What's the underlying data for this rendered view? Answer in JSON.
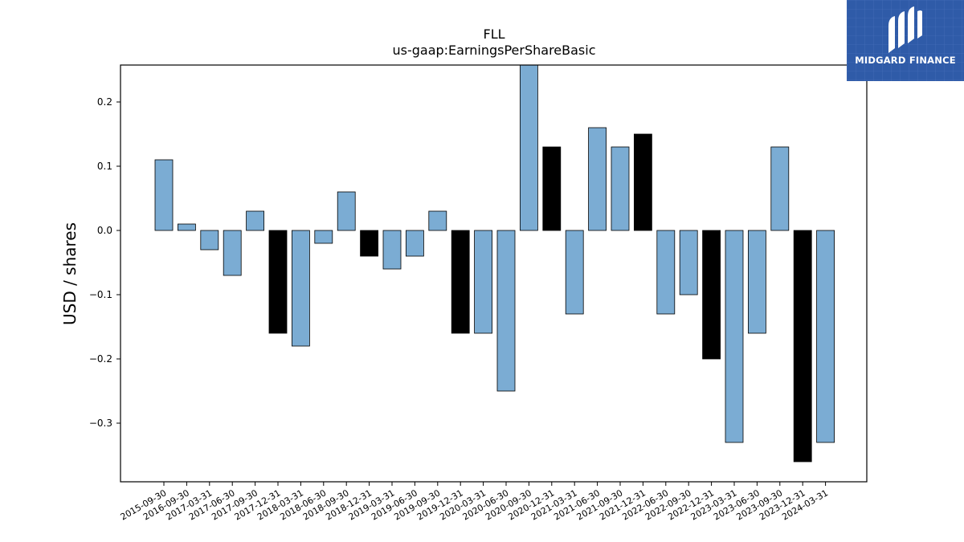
{
  "chart_data": {
    "type": "bar",
    "title": "FLL",
    "subtitle": "us-gaap:EarningsPerShareBasic",
    "xlabel": "",
    "ylabel": "USD / shares",
    "ylim": [
      -0.39,
      0.26
    ],
    "yticks": [
      0.2,
      0.1,
      0.0,
      -0.1,
      -0.2,
      -0.3
    ],
    "ytick_labels": [
      "0.2",
      "0.1",
      "0.0",
      "−0.1",
      "−0.2",
      "−0.3"
    ],
    "grid": false,
    "colors": {
      "quarterly": "#7bacd3",
      "annual": "#000000",
      "edge": "#000000"
    },
    "categories": [
      "2015-09-30",
      "2016-09-30",
      "2017-03-31",
      "2017-06-30",
      "2017-09-30",
      "2017-12-31",
      "2018-03-31",
      "2018-06-30",
      "2018-09-30",
      "2018-12-31",
      "2019-03-31",
      "2019-06-30",
      "2019-09-30",
      "2019-12-31",
      "2020-03-31",
      "2020-06-30",
      "2020-09-30",
      "2020-12-31",
      "2021-03-31",
      "2021-06-30",
      "2021-09-30",
      "2021-12-31",
      "2022-06-30",
      "2022-09-30",
      "2022-12-31",
      "2023-03-31",
      "2023-06-30",
      "2023-09-30",
      "2023-12-31",
      "2024-03-31"
    ],
    "values": [
      0.11,
      0.01,
      -0.03,
      -0.07,
      0.03,
      -0.16,
      -0.18,
      -0.02,
      0.06,
      -0.04,
      -0.06,
      -0.04,
      0.03,
      -0.16,
      -0.16,
      -0.25,
      0.26,
      0.13,
      -0.13,
      0.16,
      0.13,
      0.15,
      -0.13,
      -0.1,
      -0.2,
      -0.33,
      -0.16,
      0.13,
      -0.36,
      -0.33
    ],
    "annual": [
      false,
      false,
      false,
      false,
      false,
      true,
      false,
      false,
      false,
      true,
      false,
      false,
      false,
      true,
      false,
      false,
      false,
      true,
      false,
      false,
      false,
      true,
      false,
      false,
      true,
      false,
      false,
      false,
      true,
      false
    ]
  },
  "logo": {
    "text": "MIDGARD FINANCE",
    "background": "#2f5ba8"
  }
}
